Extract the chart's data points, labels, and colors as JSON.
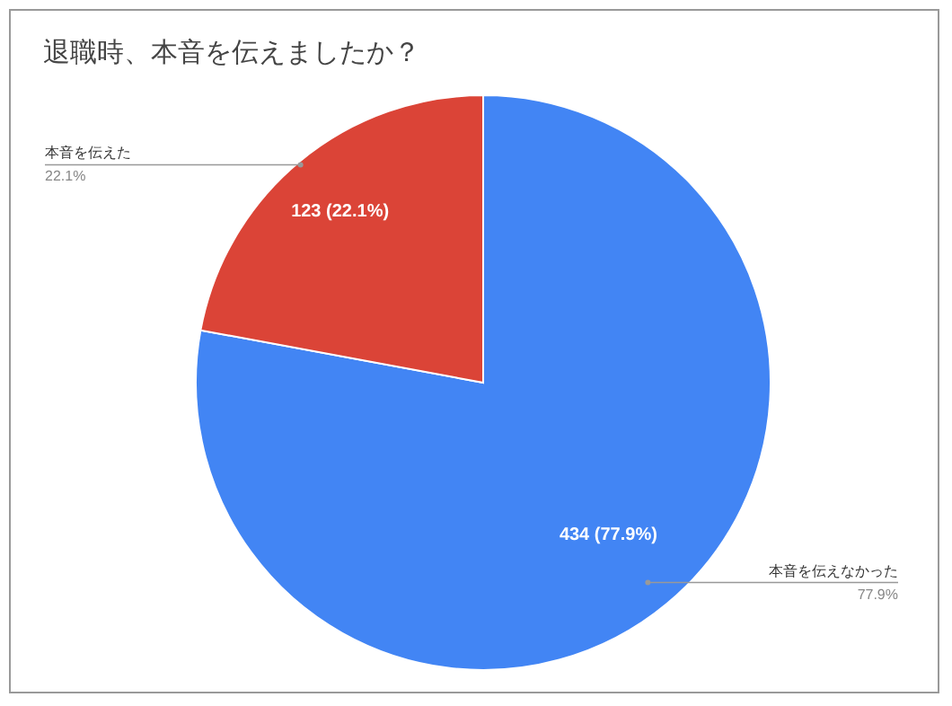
{
  "chart_data": {
    "type": "pie",
    "title": "退職時、本音を伝えましたか？",
    "categories": [
      "本音を伝えなかった",
      "本音を伝えた"
    ],
    "values": [
      434,
      123
    ],
    "colors": [
      "#4285f4",
      "#db4437"
    ],
    "value_labels": [
      "434 (77.9%)",
      "123 (22.1%)"
    ],
    "annotations": [
      "77.9%",
      "22.1%"
    ],
    "legend": false
  }
}
